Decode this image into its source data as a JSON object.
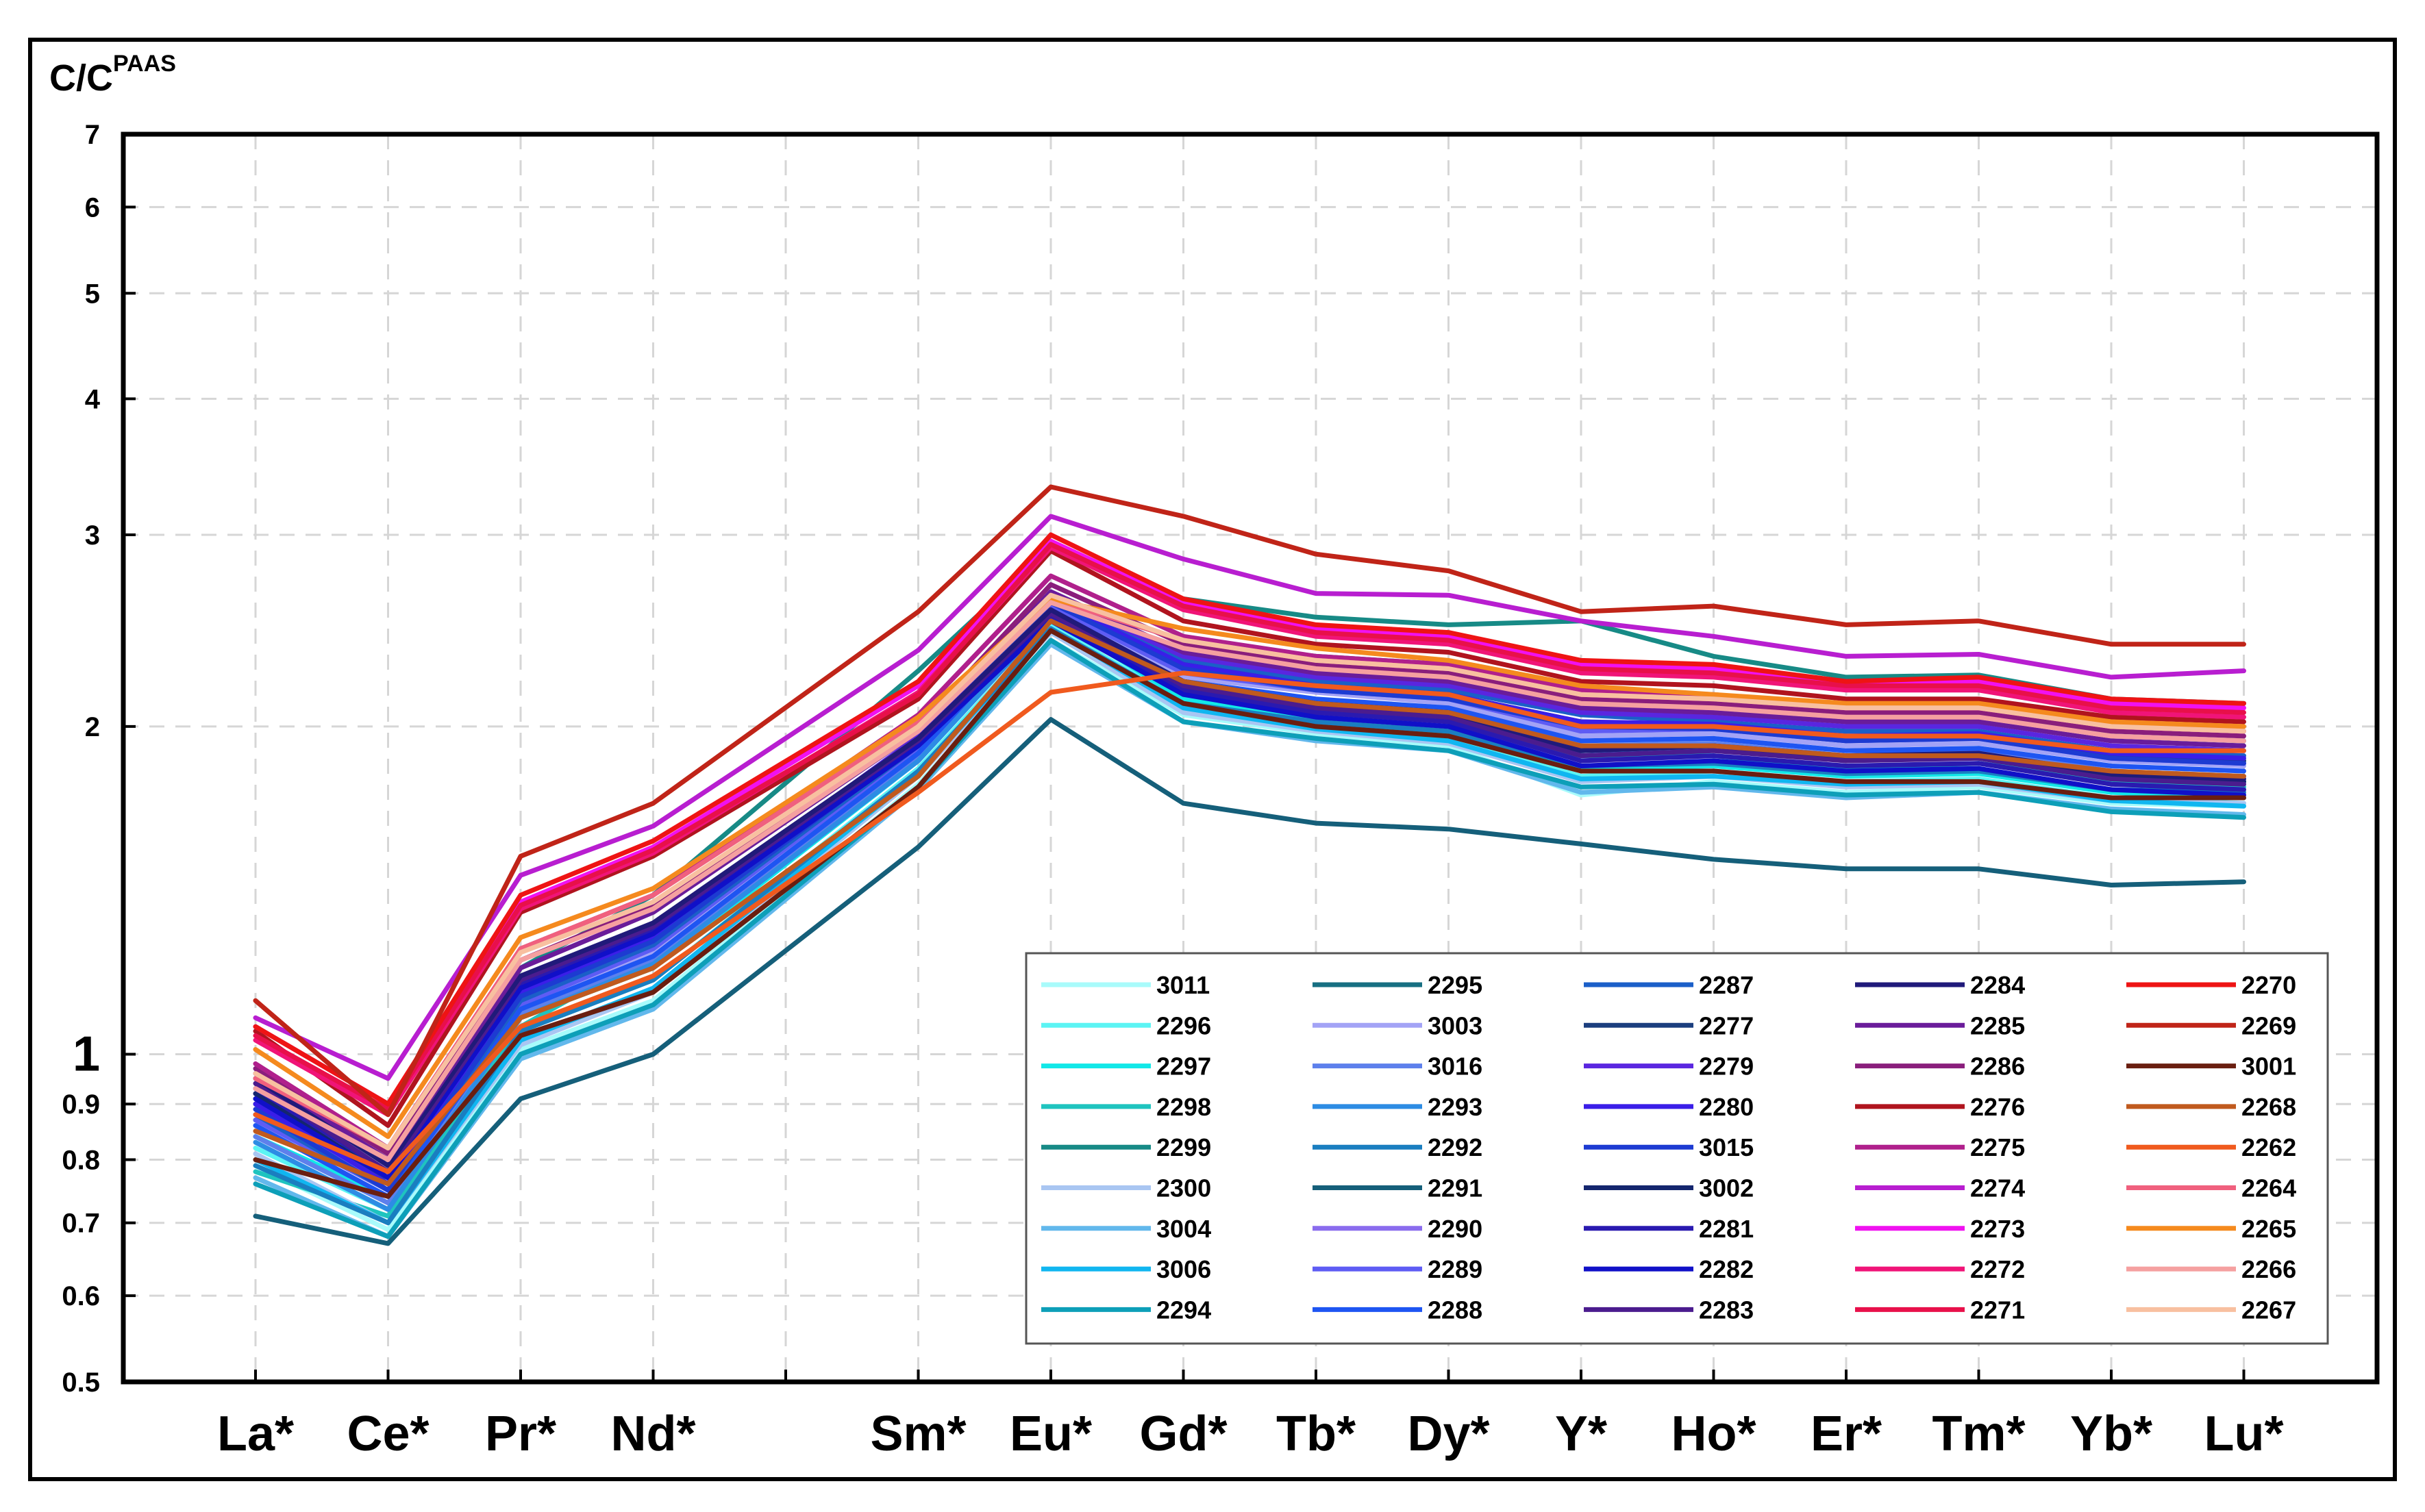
{
  "chart_data": {
    "type": "line",
    "title": "",
    "ylabel_main": "C/C",
    "ylabel_sup": "PAAS",
    "xlabel": "",
    "y_scale": "log",
    "ylim": [
      0.5,
      7
    ],
    "yticks": [
      {
        "value": 0.5,
        "label": "0.5"
      },
      {
        "value": 0.6,
        "label": "0.6"
      },
      {
        "value": 0.7,
        "label": "0.7"
      },
      {
        "value": 0.8,
        "label": "0.8"
      },
      {
        "value": 0.9,
        "label": "0.9"
      },
      {
        "value": 1,
        "label": "1"
      },
      {
        "value": 2,
        "label": "2"
      },
      {
        "value": 3,
        "label": "3"
      },
      {
        "value": 4,
        "label": "4"
      },
      {
        "value": 5,
        "label": "5"
      },
      {
        "value": 6,
        "label": "6"
      },
      {
        "value": 7,
        "label": "7"
      }
    ],
    "categories": [
      "La*",
      "Ce*",
      "Pr*",
      "Nd*",
      "",
      "Sm*",
      "Eu*",
      "Gd*",
      "Tb*",
      "Dy*",
      "Y*",
      "Ho*",
      "Er*",
      "Tm*",
      "Yb*",
      "Lu*"
    ],
    "grid": true,
    "legend_position": "bottom-right",
    "series": [
      {
        "name": "3011",
        "color": "#a8fbfb",
        "values": [
          0.79,
          0.69,
          1.01,
          1.12,
          null,
          1.77,
          2.4,
          2.05,
          1.97,
          1.92,
          1.73,
          1.78,
          1.74,
          1.76,
          1.7,
          1.69
        ]
      },
      {
        "name": "2296",
        "color": "#5cf4f4",
        "values": [
          0.82,
          0.72,
          1.05,
          1.17,
          null,
          1.83,
          2.48,
          2.1,
          2.0,
          1.95,
          1.8,
          1.82,
          1.78,
          1.79,
          1.72,
          1.7
        ]
      },
      {
        "name": "2297",
        "color": "#12e8e8",
        "values": [
          0.84,
          0.74,
          1.08,
          1.2,
          null,
          1.86,
          2.52,
          2.12,
          2.02,
          1.97,
          1.83,
          1.84,
          1.8,
          1.81,
          1.74,
          1.72
        ]
      },
      {
        "name": "2298",
        "color": "#1fc4bf",
        "values": [
          0.78,
          0.71,
          1.06,
          1.24,
          null,
          1.9,
          2.58,
          2.2,
          2.08,
          2.02,
          1.88,
          1.88,
          1.83,
          1.85,
          1.78,
          1.76
        ]
      },
      {
        "name": "2299",
        "color": "#178a86",
        "values": [
          0.87,
          0.77,
          1.2,
          1.4,
          null,
          2.25,
          2.92,
          2.62,
          2.52,
          2.48,
          2.5,
          2.32,
          2.22,
          2.23,
          2.12,
          2.1
        ]
      },
      {
        "name": "2300",
        "color": "#a9c6f2",
        "values": [
          0.81,
          0.7,
          1.02,
          1.14,
          null,
          1.8,
          2.44,
          2.06,
          1.98,
          1.93,
          1.78,
          1.8,
          1.76,
          1.77,
          1.71,
          1.7
        ]
      },
      {
        "name": "3004",
        "color": "#62b8ec",
        "values": [
          0.77,
          0.68,
          0.99,
          1.1,
          null,
          1.75,
          2.38,
          2.02,
          1.94,
          1.9,
          1.74,
          1.76,
          1.72,
          1.74,
          1.68,
          1.66
        ]
      },
      {
        "name": "3006",
        "color": "#10b6f0",
        "values": [
          0.8,
          0.7,
          1.03,
          1.15,
          null,
          1.81,
          2.46,
          2.08,
          1.99,
          1.94,
          1.79,
          1.8,
          1.77,
          1.78,
          1.71,
          1.69
        ]
      },
      {
        "name": "2294",
        "color": "#0d9fb8",
        "values": [
          0.76,
          0.68,
          1.0,
          1.11,
          null,
          1.76,
          2.4,
          2.02,
          1.95,
          1.9,
          1.76,
          1.77,
          1.73,
          1.74,
          1.67,
          1.65
        ]
      },
      {
        "name": "2295",
        "color": "#176f82",
        "values": [
          0.9,
          0.78,
          1.15,
          1.28,
          null,
          1.96,
          2.62,
          2.4,
          2.32,
          2.28,
          2.18,
          2.12,
          2.06,
          2.06,
          1.96,
          1.94
        ]
      },
      {
        "name": "3003",
        "color": "#a3a3f6",
        "values": [
          0.86,
          0.74,
          1.1,
          1.24,
          null,
          1.9,
          2.55,
          2.22,
          2.15,
          2.1,
          1.96,
          1.97,
          1.92,
          1.93,
          1.86,
          1.84
        ]
      },
      {
        "name": "3016",
        "color": "#5d80ec",
        "values": [
          0.84,
          0.73,
          1.09,
          1.22,
          null,
          1.88,
          2.54,
          2.18,
          2.1,
          2.06,
          1.92,
          1.93,
          1.88,
          1.9,
          1.82,
          1.8
        ]
      },
      {
        "name": "2293",
        "color": "#2d8ce4",
        "values": [
          0.83,
          0.72,
          1.08,
          1.21,
          null,
          1.86,
          2.52,
          2.16,
          2.08,
          2.04,
          1.9,
          1.91,
          1.86,
          1.88,
          1.8,
          1.78
        ]
      },
      {
        "name": "2292",
        "color": "#1a7ec0",
        "values": [
          0.79,
          0.7,
          1.05,
          1.17,
          null,
          1.82,
          2.46,
          2.1,
          2.02,
          1.98,
          1.84,
          1.85,
          1.81,
          1.82,
          1.75,
          1.74
        ]
      },
      {
        "name": "2291",
        "color": "#155f7a",
        "values": [
          0.71,
          0.67,
          0.91,
          1.0,
          null,
          1.55,
          2.03,
          1.7,
          1.63,
          1.61,
          1.56,
          1.51,
          1.48,
          1.48,
          1.43,
          1.44
        ]
      },
      {
        "name": "2290",
        "color": "#8a6cee",
        "values": [
          0.88,
          0.76,
          1.12,
          1.26,
          null,
          1.92,
          2.6,
          2.26,
          2.18,
          2.14,
          2.0,
          2.0,
          1.95,
          1.96,
          1.88,
          1.86
        ]
      },
      {
        "name": "2289",
        "color": "#5e5cf4",
        "values": [
          0.87,
          0.75,
          1.11,
          1.25,
          null,
          1.91,
          2.58,
          2.24,
          2.16,
          2.12,
          1.98,
          1.99,
          1.94,
          1.95,
          1.87,
          1.85
        ]
      },
      {
        "name": "2288",
        "color": "#1e55f2",
        "values": [
          0.86,
          0.74,
          1.1,
          1.23,
          null,
          1.89,
          2.56,
          2.2,
          2.12,
          2.08,
          1.94,
          1.95,
          1.9,
          1.91,
          1.84,
          1.82
        ]
      },
      {
        "name": "2287",
        "color": "#1b5fc8",
        "values": [
          0.88,
          0.75,
          1.12,
          1.26,
          null,
          1.92,
          2.62,
          2.3,
          2.2,
          2.16,
          2.05,
          2.02,
          1.98,
          1.98,
          1.9,
          1.88
        ]
      },
      {
        "name": "2277",
        "color": "#1b3e7e",
        "values": [
          0.91,
          0.76,
          1.14,
          1.28,
          null,
          1.94,
          2.6,
          2.28,
          2.18,
          2.14,
          2.02,
          2.0,
          1.96,
          1.96,
          1.88,
          1.86
        ]
      },
      {
        "name": "2279",
        "color": "#5a26e0",
        "values": [
          0.92,
          0.77,
          1.16,
          1.3,
          null,
          1.96,
          2.64,
          2.32,
          2.22,
          2.18,
          2.06,
          2.04,
          2.0,
          2.0,
          1.92,
          1.9
        ]
      },
      {
        "name": "2280",
        "color": "#3a1ee8",
        "values": [
          0.9,
          0.76,
          1.14,
          1.28,
          null,
          1.94,
          2.62,
          2.28,
          2.18,
          2.14,
          2.02,
          2.01,
          1.96,
          1.97,
          1.89,
          1.87
        ]
      },
      {
        "name": "3015",
        "color": "#1d3bd2",
        "values": [
          0.89,
          0.75,
          1.13,
          1.27,
          null,
          1.93,
          2.6,
          2.26,
          2.16,
          2.12,
          2.0,
          1.99,
          1.94,
          1.95,
          1.87,
          1.85
        ]
      },
      {
        "name": "3002",
        "color": "#14266e",
        "values": [
          0.92,
          0.77,
          1.17,
          1.31,
          null,
          1.95,
          2.55,
          2.2,
          2.1,
          2.06,
          1.9,
          1.92,
          1.87,
          1.88,
          1.8,
          1.78
        ]
      },
      {
        "name": "2281",
        "color": "#2a1ab0",
        "values": [
          0.93,
          0.78,
          1.16,
          1.3,
          null,
          1.93,
          2.52,
          2.16,
          2.06,
          2.02,
          1.86,
          1.88,
          1.84,
          1.85,
          1.77,
          1.75
        ]
      },
      {
        "name": "2282",
        "color": "#1010c8",
        "values": [
          0.91,
          0.77,
          1.15,
          1.29,
          null,
          1.92,
          2.5,
          2.14,
          2.04,
          2.0,
          1.84,
          1.86,
          1.82,
          1.83,
          1.75,
          1.73
        ]
      },
      {
        "name": "2283",
        "color": "#4b1c8e",
        "values": [
          0.94,
          0.78,
          1.17,
          1.31,
          null,
          1.94,
          2.54,
          2.18,
          2.08,
          2.04,
          1.88,
          1.9,
          1.86,
          1.87,
          1.79,
          1.77
        ]
      },
      {
        "name": "2284",
        "color": "#201a7a",
        "values": [
          0.95,
          0.79,
          1.18,
          1.32,
          null,
          1.95,
          2.56,
          2.2,
          2.1,
          2.06,
          1.9,
          1.92,
          1.88,
          1.89,
          1.81,
          1.79
        ]
      },
      {
        "name": "2285",
        "color": "#6a1c9a",
        "values": [
          0.96,
          0.8,
          1.2,
          1.35,
          null,
          1.98,
          2.66,
          2.34,
          2.24,
          2.2,
          2.08,
          2.06,
          2.02,
          2.02,
          1.94,
          1.92
        ]
      },
      {
        "name": "2286",
        "color": "#8a1e7c",
        "values": [
          0.97,
          0.81,
          1.22,
          1.37,
          null,
          2.0,
          2.7,
          2.38,
          2.28,
          2.24,
          2.12,
          2.1,
          2.06,
          2.06,
          1.98,
          1.96
        ]
      },
      {
        "name": "2276",
        "color": "#b0141e",
        "values": [
          1.05,
          0.86,
          1.35,
          1.52,
          null,
          2.12,
          2.9,
          2.5,
          2.38,
          2.34,
          2.2,
          2.18,
          2.12,
          2.12,
          2.04,
          2.02
        ]
      },
      {
        "name": "2275",
        "color": "#b0208c",
        "values": [
          0.98,
          0.82,
          1.25,
          1.4,
          null,
          2.05,
          2.75,
          2.42,
          2.32,
          2.28,
          2.16,
          2.14,
          2.08,
          2.08,
          2.0,
          1.98
        ]
      },
      {
        "name": "2274",
        "color": "#b81ed0",
        "values": [
          1.08,
          0.95,
          1.46,
          1.62,
          null,
          2.35,
          3.12,
          2.85,
          2.65,
          2.64,
          2.5,
          2.42,
          2.32,
          2.33,
          2.22,
          2.25
        ]
      },
      {
        "name": "2273",
        "color": "#f012f0",
        "values": [
          1.06,
          0.9,
          1.38,
          1.55,
          null,
          2.18,
          2.96,
          2.6,
          2.46,
          2.42,
          2.28,
          2.26,
          2.2,
          2.2,
          2.1,
          2.08
        ]
      },
      {
        "name": "2272",
        "color": "#f01478",
        "values": [
          1.03,
          0.88,
          1.36,
          1.53,
          null,
          2.15,
          2.92,
          2.56,
          2.42,
          2.38,
          2.24,
          2.22,
          2.16,
          2.16,
          2.06,
          2.04
        ]
      },
      {
        "name": "2271",
        "color": "#e8104a",
        "values": [
          1.04,
          0.89,
          1.37,
          1.54,
          null,
          2.14,
          2.94,
          2.58,
          2.44,
          2.4,
          2.26,
          2.24,
          2.18,
          2.18,
          2.08,
          2.06
        ]
      },
      {
        "name": "2270",
        "color": "#ee1414",
        "values": [
          1.06,
          0.9,
          1.4,
          1.57,
          null,
          2.2,
          3.0,
          2.62,
          2.48,
          2.44,
          2.3,
          2.28,
          2.2,
          2.22,
          2.12,
          2.1
        ]
      },
      {
        "name": "2269",
        "color": "#c02418",
        "values": [
          1.12,
          0.88,
          1.52,
          1.7,
          null,
          2.55,
          3.32,
          3.12,
          2.88,
          2.78,
          2.55,
          2.58,
          2.48,
          2.5,
          2.38,
          2.38
        ]
      },
      {
        "name": "3001",
        "color": "#6a1e10",
        "values": [
          0.8,
          0.74,
          1.04,
          1.14,
          null,
          1.76,
          2.45,
          2.1,
          2.0,
          1.96,
          1.82,
          1.82,
          1.78,
          1.78,
          1.72,
          1.72
        ]
      },
      {
        "name": "2268",
        "color": "#c05a1e",
        "values": [
          0.85,
          0.76,
          1.08,
          1.2,
          null,
          1.8,
          2.5,
          2.2,
          2.1,
          2.06,
          1.92,
          1.92,
          1.88,
          1.88,
          1.82,
          1.8
        ]
      },
      {
        "name": "2262",
        "color": "#f05a1e",
        "values": [
          0.88,
          0.78,
          1.06,
          1.18,
          null,
          1.74,
          2.15,
          2.24,
          2.18,
          2.14,
          2.0,
          2.0,
          1.96,
          1.96,
          1.9,
          1.9
        ]
      },
      {
        "name": "2264",
        "color": "#f0607e",
        "values": [
          0.95,
          0.82,
          1.25,
          1.4,
          null,
          2.02,
          2.62,
          2.4,
          2.3,
          2.26,
          2.14,
          2.12,
          2.08,
          2.08,
          2.0,
          1.98
        ]
      },
      {
        "name": "2265",
        "color": "#f58a1e",
        "values": [
          1.01,
          0.84,
          1.28,
          1.42,
          null,
          2.04,
          2.62,
          2.46,
          2.36,
          2.3,
          2.18,
          2.14,
          2.1,
          2.1,
          2.02,
          2.0
        ]
      },
      {
        "name": "2266",
        "color": "#f5a0a0",
        "values": [
          0.93,
          0.8,
          1.22,
          1.36,
          null,
          1.98,
          2.6,
          2.36,
          2.26,
          2.22,
          2.1,
          2.08,
          2.04,
          2.04,
          1.96,
          1.94
        ]
      },
      {
        "name": "2267",
        "color": "#f8c0a0",
        "values": [
          0.96,
          0.82,
          1.24,
          1.38,
          null,
          2.0,
          2.64,
          2.4,
          2.3,
          2.26,
          2.14,
          2.12,
          2.08,
          2.08,
          2.0,
          1.98
        ]
      }
    ]
  }
}
